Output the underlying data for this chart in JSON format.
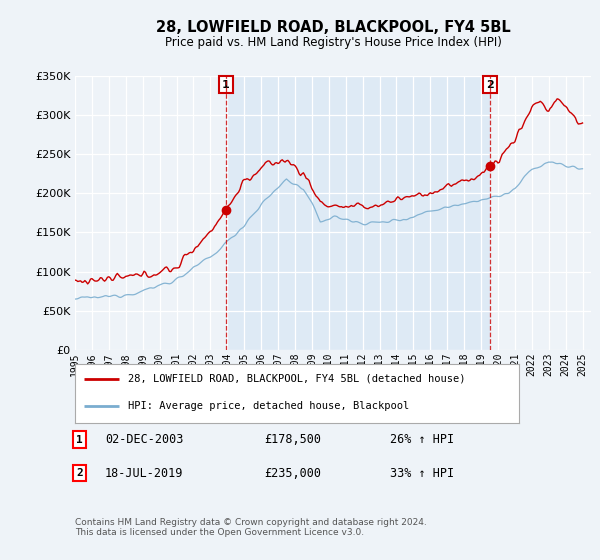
{
  "title": "28, LOWFIELD ROAD, BLACKPOOL, FY4 5BL",
  "subtitle": "Price paid vs. HM Land Registry's House Price Index (HPI)",
  "legend_line1": "28, LOWFIELD ROAD, BLACKPOOL, FY4 5BL (detached house)",
  "legend_line2": "HPI: Average price, detached house, Blackpool",
  "point1_date": "02-DEC-2003",
  "point1_price": "£178,500",
  "point1_hpi": "26% ↑ HPI",
  "point1_x": 2003.917,
  "point1_y": 178500,
  "point2_date": "18-JUL-2019",
  "point2_price": "£235,000",
  "point2_hpi": "33% ↑ HPI",
  "point2_x": 2019.542,
  "point2_y": 235000,
  "red_color": "#cc0000",
  "blue_color": "#7aadcf",
  "highlight_color": "#deeaf5",
  "bg_color": "#eef3f8",
  "ylim": [
    0,
    350000
  ],
  "xlim_left": 1995.0,
  "xlim_right": 2025.5,
  "footer": "Contains HM Land Registry data © Crown copyright and database right 2024.\nThis data is licensed under the Open Government Licence v3.0."
}
